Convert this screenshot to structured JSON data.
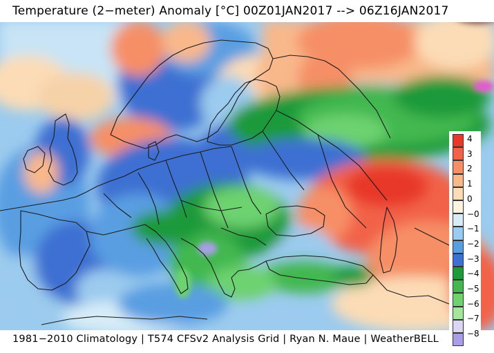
{
  "title": "Temperature (2−meter) Anomaly  [°C] 00Z01JAN2017 --> 06Z16JAN2017",
  "credits": "1981−2010 Climatology | T574 CFSv2 Analysis Grid | Ryan N. Maue | WeatherBELL",
  "legend": {
    "ticks": [
      "4",
      "3",
      "2",
      "1",
      "0",
      "−0",
      "−1",
      "−2",
      "−3",
      "−4",
      "−5",
      "−6",
      "−7",
      "−8"
    ],
    "colors": [
      "#e8382a",
      "#f2624a",
      "#f68f66",
      "#f9b88a",
      "#fbdcb6",
      "#fdf4e0",
      "#d7ecf7",
      "#9bcbee",
      "#5a9ee2",
      "#3c70d2",
      "#1f9a3a",
      "#42b84f",
      "#6dd26f",
      "#a6e69c",
      "#dcd6f4",
      "#a99ee6"
    ]
  }
}
